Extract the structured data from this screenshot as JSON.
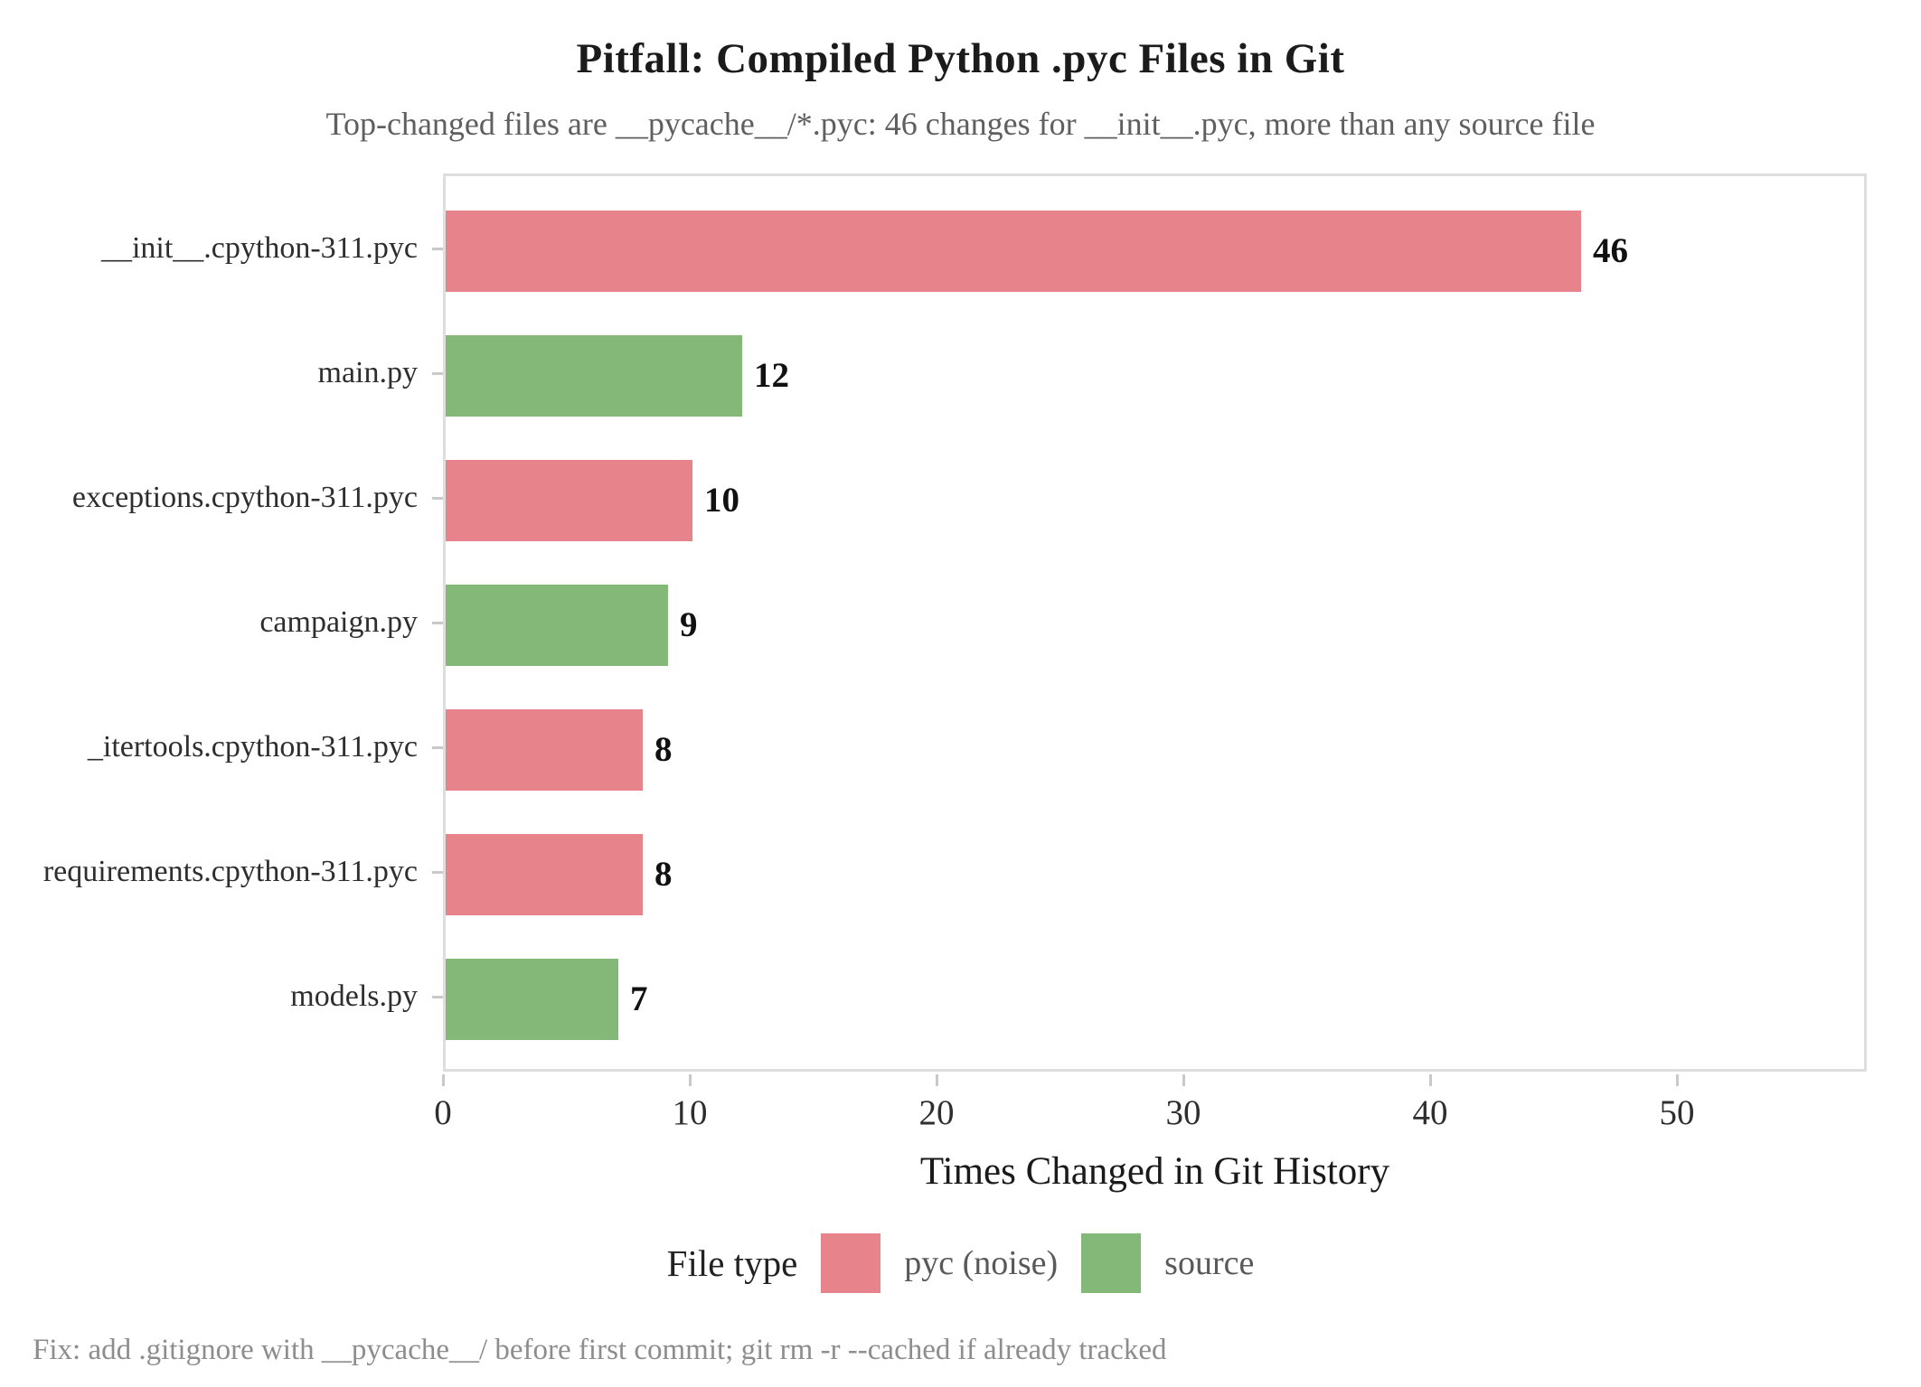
{
  "chart_data": {
    "type": "bar",
    "orientation": "horizontal",
    "title": "Pitfall: Compiled Python .pyc Files in Git",
    "subtitle": "Top-changed files are __pycache__/*.pyc: 46 changes for __init__.pyc, more than any source file",
    "caption": "Fix: add .gitignore with __pycache__/ before first commit; git rm -r --cached if already tracked",
    "xlabel": "Times Changed in Git History",
    "ylabel": "",
    "categories": [
      "__init__.cpython-311.pyc",
      "main.py",
      "exceptions.cpython-311.pyc",
      "campaign.py",
      "_itertools.cpython-311.pyc",
      "requirements.cpython-311.pyc",
      "models.py"
    ],
    "values": [
      46,
      12,
      10,
      9,
      8,
      8,
      7
    ],
    "bar_types": [
      "pyc (noise)",
      "source",
      "pyc (noise)",
      "source",
      "pyc (noise)",
      "pyc (noise)",
      "source"
    ],
    "value_labels": [
      "46",
      "12",
      "10",
      "9",
      "8",
      "8",
      "7"
    ],
    "colors": {
      "pyc (noise)": "#e7838b",
      "source": "#83b879"
    },
    "xlim": [
      0,
      57.7
    ],
    "xticks": [
      0,
      10,
      20,
      30,
      40,
      50
    ],
    "grid": false,
    "legend": {
      "title": "File type",
      "position": "bottom",
      "entries": [
        "pyc (noise)",
        "source"
      ]
    }
  }
}
